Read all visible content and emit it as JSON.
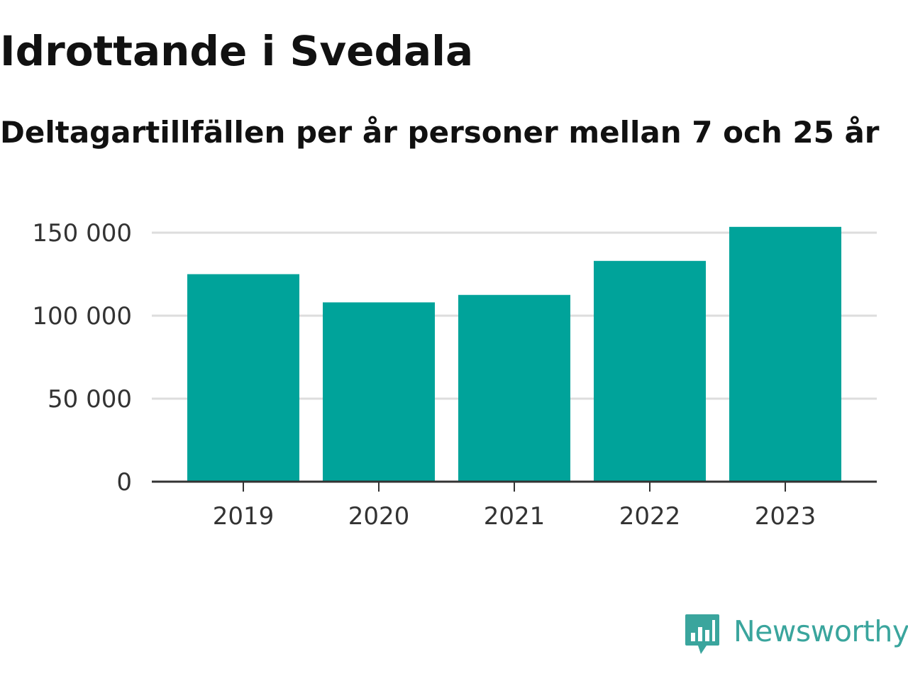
{
  "chart_data": {
    "type": "bar",
    "title": "Idrottande i Svedala",
    "subtitle": "Deltagartillfällen per år personer mellan 7 och 25 år",
    "xlabel": "",
    "ylabel": "",
    "categories": [
      "2019",
      "2020",
      "2021",
      "2022",
      "2023"
    ],
    "values": [
      125000,
      108000,
      112500,
      133000,
      153500
    ],
    "ylim": [
      0,
      150000
    ],
    "yticks": [
      0,
      50000,
      100000,
      150000
    ],
    "ytick_labels": [
      "0",
      "50 000",
      "100 000",
      "150 000"
    ],
    "grid": true,
    "legend": "none",
    "bar_color": "#00a39a"
  },
  "branding": {
    "name": "Newsworthy",
    "icon": "newsworthy-logo-icon",
    "color": "#3aa59d"
  }
}
